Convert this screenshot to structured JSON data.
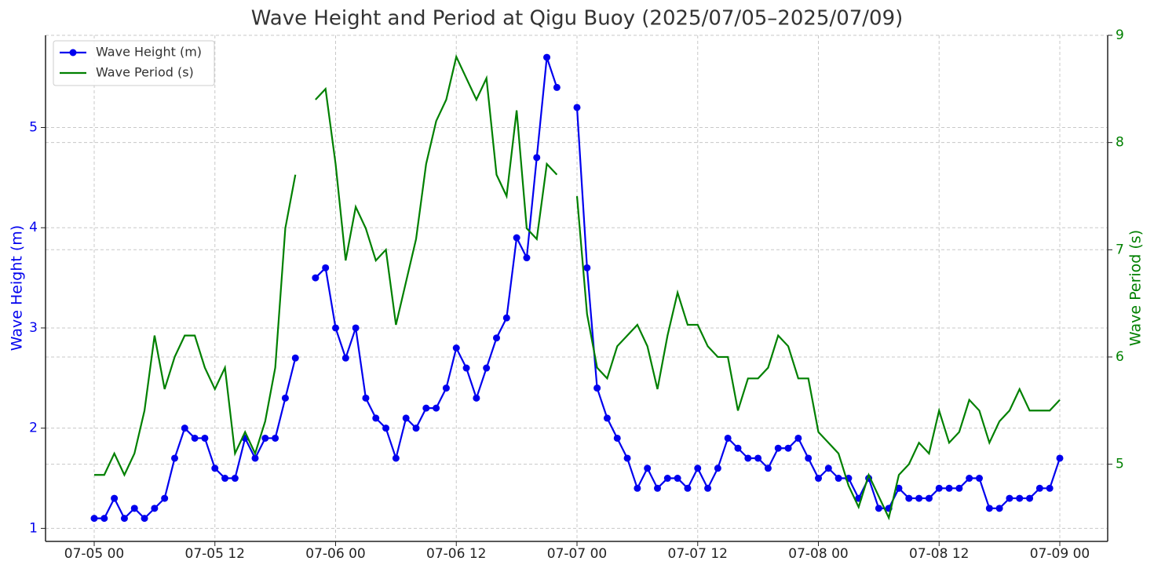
{
  "chart_data": {
    "type": "line",
    "title": "Wave Height and Period at Qigu Buoy (2025/07/05–2025/07/09)",
    "ylabel": "Wave Height (m)",
    "y2label": "Wave Period (s)",
    "x": [
      "07-05 00",
      "07-05 01",
      "07-05 02",
      "07-05 03",
      "07-05 04",
      "07-05 05",
      "07-05 06",
      "07-05 07",
      "07-05 08",
      "07-05 09",
      "07-05 10",
      "07-05 11",
      "07-05 12",
      "07-05 13",
      "07-05 14",
      "07-05 15",
      "07-05 16",
      "07-05 17",
      "07-05 18",
      "07-05 19",
      "07-05 20",
      "07-05 21",
      "07-05 22",
      "07-05 23",
      "07-06 00",
      "07-06 01",
      "07-06 02",
      "07-06 03",
      "07-06 04",
      "07-06 05",
      "07-06 06",
      "07-06 07",
      "07-06 08",
      "07-06 09",
      "07-06 10",
      "07-06 11",
      "07-06 12",
      "07-06 13",
      "07-06 14",
      "07-06 15",
      "07-06 16",
      "07-06 17",
      "07-06 18",
      "07-06 19",
      "07-06 20",
      "07-06 21",
      "07-06 22",
      "07-06 23",
      "07-07 00",
      "07-07 01",
      "07-07 02",
      "07-07 03",
      "07-07 04",
      "07-07 05",
      "07-07 06",
      "07-07 07",
      "07-07 08",
      "07-07 09",
      "07-07 10",
      "07-07 11",
      "07-07 12",
      "07-07 13",
      "07-07 14",
      "07-07 15",
      "07-07 16",
      "07-07 17",
      "07-07 18",
      "07-07 19",
      "07-07 20",
      "07-07 21",
      "07-07 22",
      "07-07 23",
      "07-08 00",
      "07-08 01",
      "07-08 02",
      "07-08 03",
      "07-08 04",
      "07-08 05",
      "07-08 06",
      "07-08 07",
      "07-08 08",
      "07-08 09",
      "07-08 10",
      "07-08 11",
      "07-08 12",
      "07-08 13",
      "07-08 14",
      "07-08 15",
      "07-08 16",
      "07-08 17",
      "07-08 18",
      "07-08 19",
      "07-08 20",
      "07-08 21",
      "07-08 22",
      "07-08 23",
      "07-09 00"
    ],
    "series": [
      {
        "name": "Wave Height (m)",
        "color": "#0000ee",
        "axis": "y",
        "marker": true,
        "values": [
          1.1,
          1.1,
          1.3,
          1.1,
          1.2,
          1.1,
          1.2,
          1.3,
          1.7,
          2.0,
          1.9,
          1.9,
          1.6,
          1.5,
          1.5,
          1.9,
          1.7,
          1.9,
          1.9,
          2.3,
          2.7,
          null,
          3.5,
          3.6,
          3.0,
          2.7,
          3.0,
          2.3,
          2.1,
          2.0,
          1.7,
          2.1,
          2.0,
          2.2,
          2.2,
          2.4,
          2.8,
          2.6,
          2.3,
          2.6,
          2.9,
          3.1,
          3.9,
          3.7,
          4.7,
          5.7,
          5.4,
          null,
          5.2,
          3.6,
          2.4,
          2.1,
          1.9,
          1.7,
          1.4,
          1.6,
          1.4,
          1.5,
          1.5,
          1.4,
          1.6,
          1.4,
          1.6,
          1.9,
          1.8,
          1.7,
          1.7,
          1.6,
          1.8,
          1.8,
          1.9,
          1.7,
          1.5,
          1.6,
          1.5,
          1.5,
          1.3,
          1.5,
          1.2,
          1.2,
          1.4,
          1.3,
          1.3,
          1.3,
          1.4,
          1.4,
          1.4,
          1.5,
          1.5,
          1.2,
          1.2,
          1.3,
          1.3,
          1.3,
          1.4,
          1.4,
          1.7
        ]
      },
      {
        "name": "Wave Period (s)",
        "color": "#008000",
        "axis": "y2",
        "marker": false,
        "values": [
          4.9,
          4.9,
          5.1,
          4.9,
          5.1,
          5.5,
          6.2,
          5.7,
          6.0,
          6.2,
          6.2,
          5.9,
          5.7,
          5.9,
          5.1,
          5.3,
          5.1,
          5.4,
          5.9,
          7.2,
          7.7,
          null,
          8.4,
          8.5,
          7.8,
          6.9,
          7.4,
          7.2,
          6.9,
          7.0,
          6.3,
          6.7,
          7.1,
          7.8,
          8.2,
          8.4,
          8.8,
          8.6,
          8.4,
          8.6,
          7.7,
          7.5,
          8.3,
          7.2,
          7.1,
          7.8,
          7.7,
          null,
          7.5,
          6.4,
          5.9,
          5.8,
          6.1,
          6.2,
          6.3,
          6.1,
          5.7,
          6.2,
          6.6,
          6.3,
          6.3,
          6.1,
          6.0,
          6.0,
          5.5,
          5.8,
          5.8,
          5.9,
          6.2,
          6.1,
          5.8,
          5.8,
          5.3,
          5.2,
          5.1,
          4.8,
          4.6,
          4.9,
          4.7,
          4.5,
          4.9,
          5.0,
          5.2,
          5.1,
          5.5,
          5.2,
          5.3,
          5.6,
          5.5,
          5.2,
          5.4,
          5.5,
          5.7,
          5.5,
          5.5,
          5.5,
          5.6
        ]
      }
    ],
    "xticks": [
      "07-05 00",
      "07-05 12",
      "07-06 00",
      "07-06 12",
      "07-07 00",
      "07-07 12",
      "07-08 00",
      "07-08 12",
      "07-09 00"
    ],
    "ylim": [
      0.87,
      5.92
    ],
    "yticks": [
      1,
      2,
      3,
      4,
      5
    ],
    "y2lim": [
      4.28,
      9
    ],
    "y2ticks": [
      5,
      6,
      7,
      8,
      9
    ],
    "grid": true,
    "legend": "upper left"
  }
}
